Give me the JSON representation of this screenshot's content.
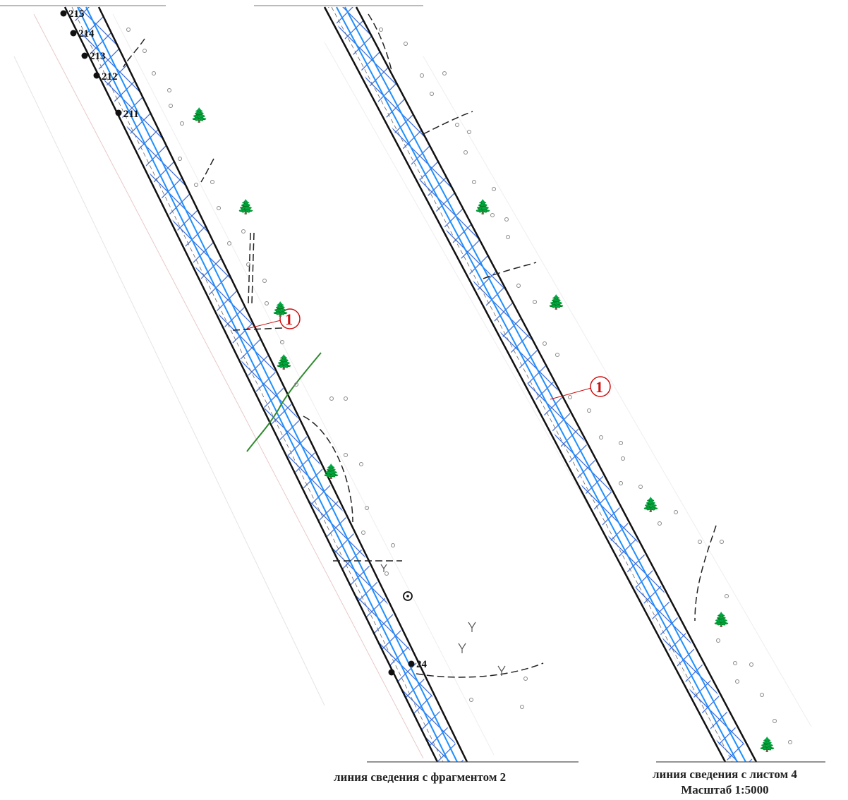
{
  "map": {
    "point_labels": {
      "p215": "215",
      "p214": "214",
      "p213": "213",
      "p212": "212",
      "p211": "211",
      "p24": "24"
    },
    "callout_left": "1",
    "callout_right": "1",
    "tree_glyph": "🌲",
    "colors": {
      "corridor_outline": "#111111",
      "pipeline_blue": "#1e90ff",
      "hatch_blue": "#2a5fd0",
      "callout_red": "#cc1111",
      "green_line": "#2e8b2e",
      "dashed_black": "#222222"
    }
  },
  "captions": {
    "left": "линия сведения с фрагментом 2",
    "right_line1": "линия сведения с листом 4",
    "right_line2": "Масштаб 1:5000"
  }
}
